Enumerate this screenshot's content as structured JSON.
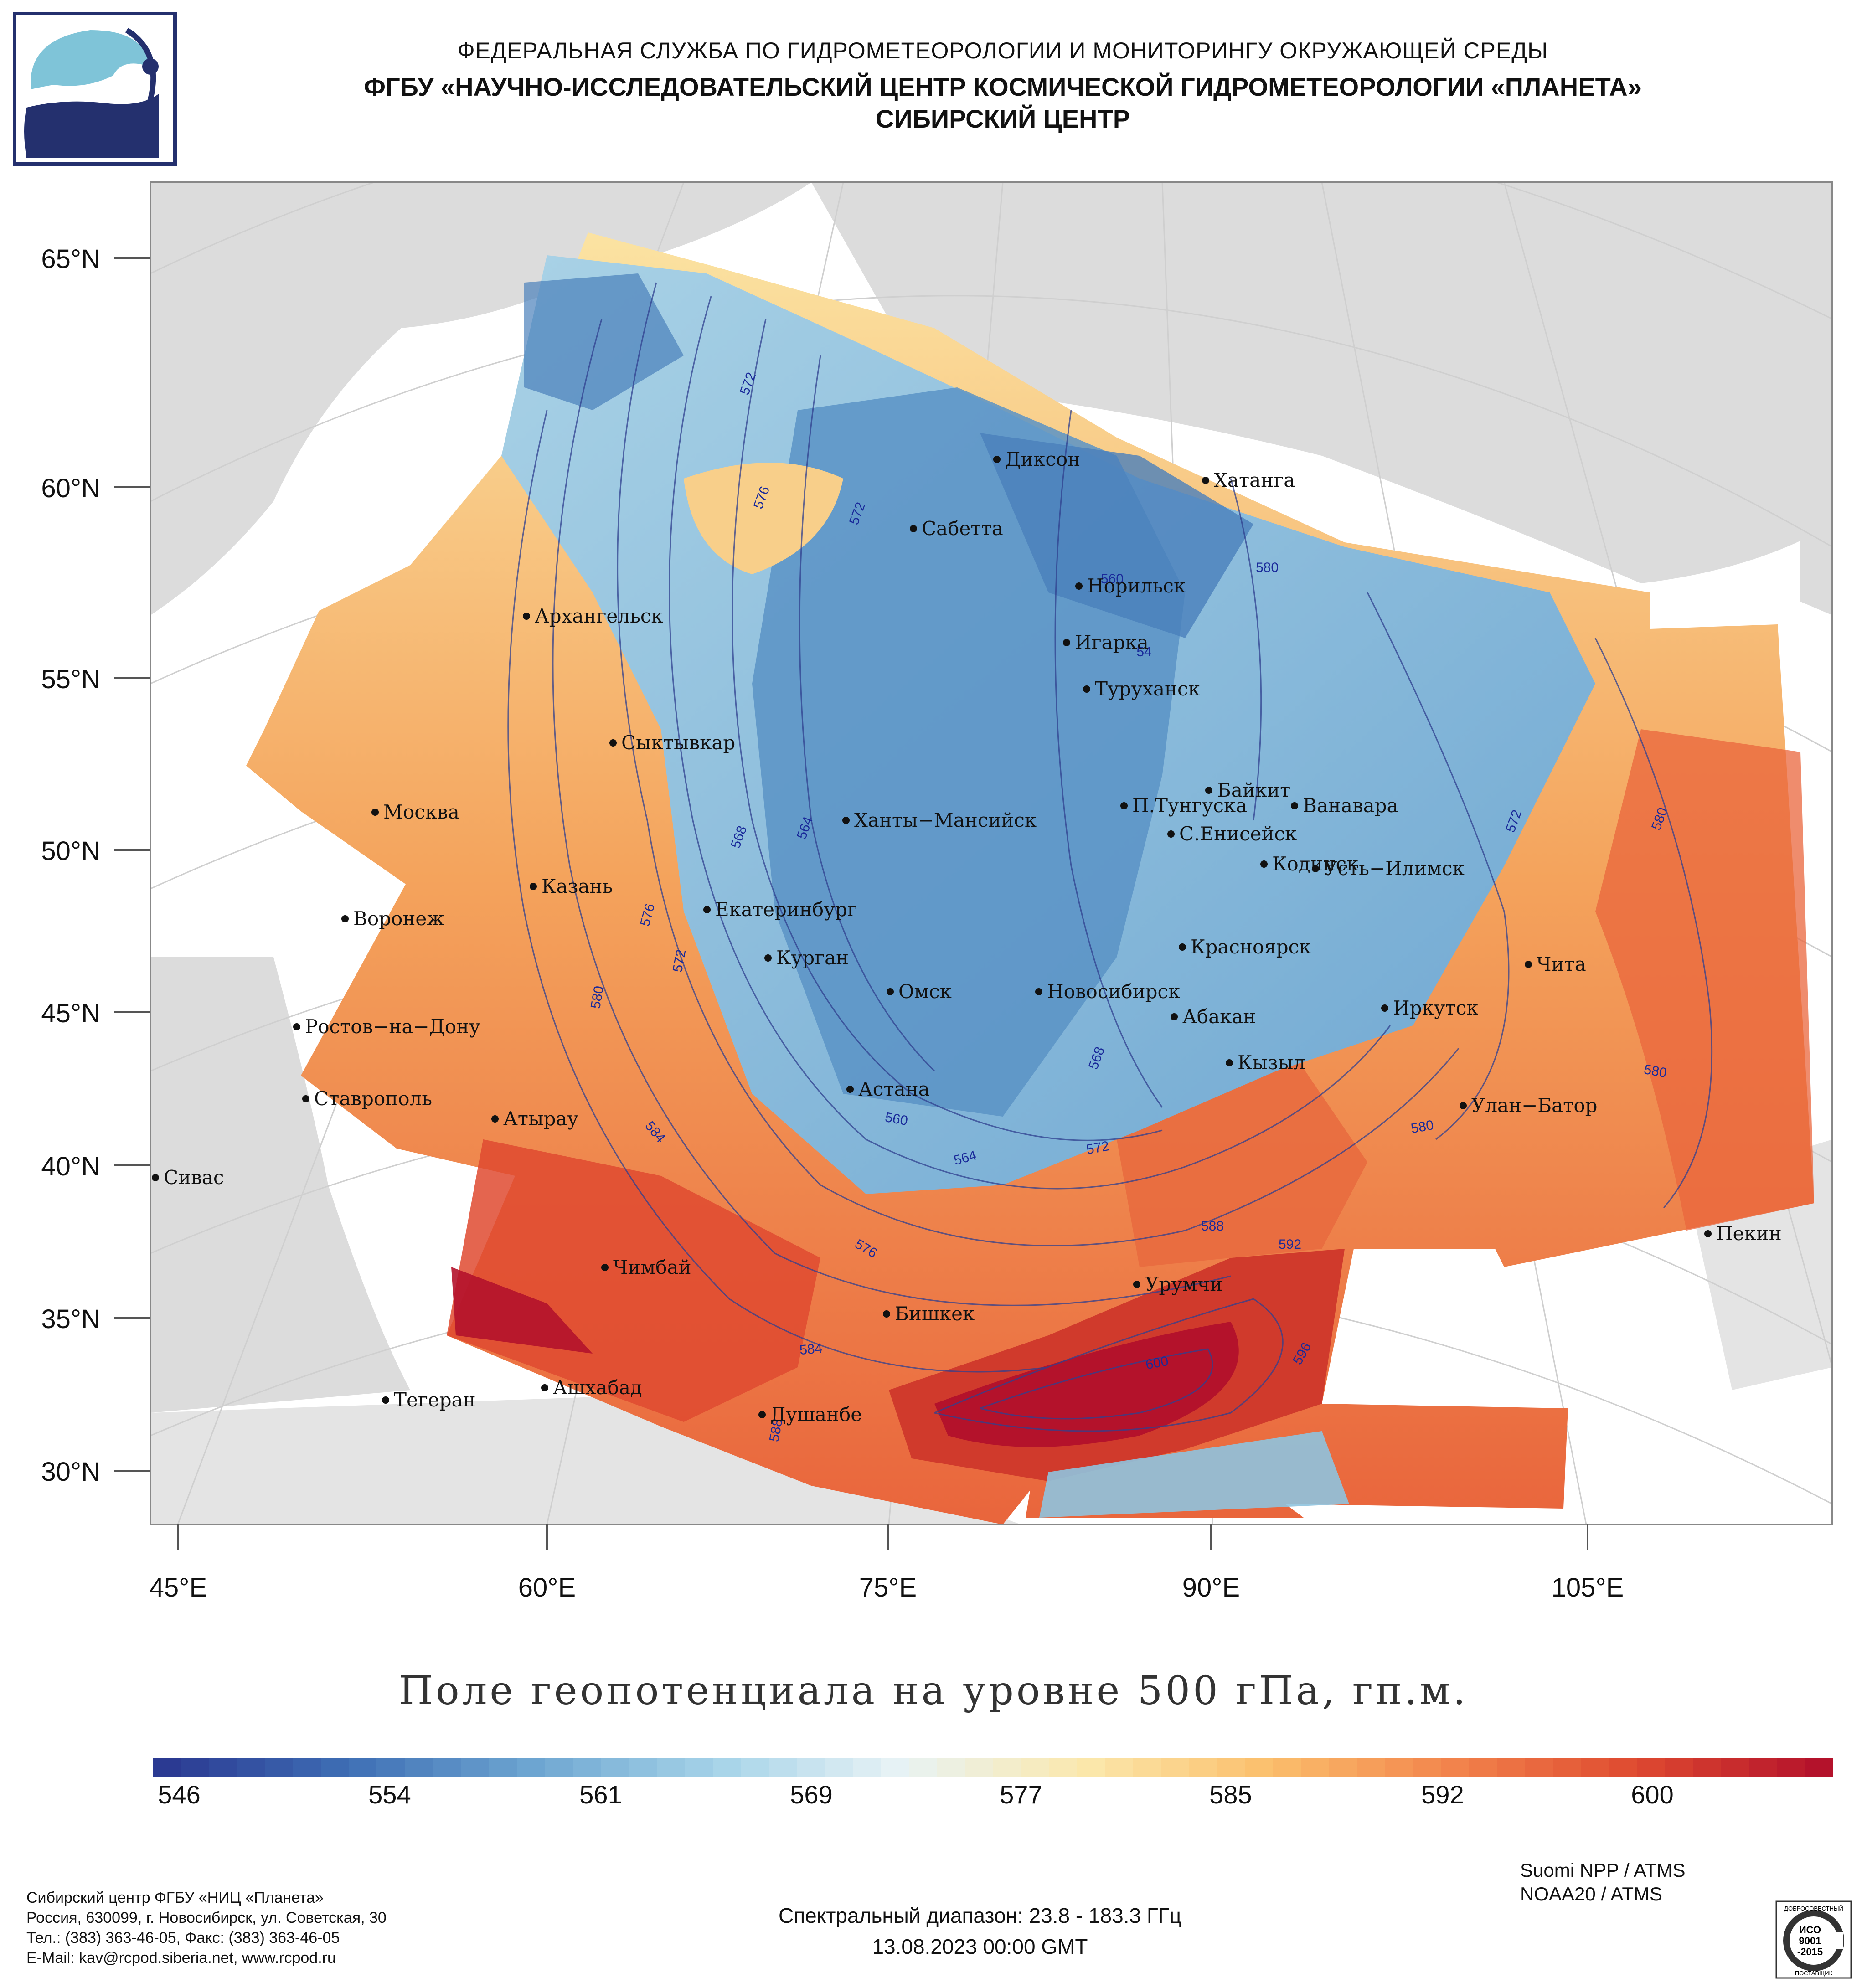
{
  "header": {
    "line1": "ФЕДЕРАЛЬНАЯ СЛУЖБА ПО ГИДРОМЕТЕОРОЛОГИИ И МОНИТОРИНГУ ОКРУЖАЮЩЕЙ СРЕДЫ",
    "line2": "ФГБУ «НАУЧНО-ИССЛЕДОВАТЕЛЬСКИЙ ЦЕНТР КОСМИЧЕСКОЙ ГИДРОМЕТЕОРОЛОГИИ «ПЛАНЕТА»",
    "line3": "СИБИРСКИЙ ЦЕНТР"
  },
  "axes": {
    "lat_labels": [
      "65°N",
      "60°N",
      "55°N",
      "50°N",
      "45°N",
      "40°N",
      "35°N",
      "30°N"
    ],
    "lon_labels": [
      "45°E",
      "60°E",
      "75°E",
      "90°E",
      "105°E"
    ]
  },
  "cities": [
    {
      "name": "Диксон"
    },
    {
      "name": "Хатанга"
    },
    {
      "name": "Сабетта"
    },
    {
      "name": "Норильск"
    },
    {
      "name": "Архангельск"
    },
    {
      "name": "Игарка"
    },
    {
      "name": "Туруханск"
    },
    {
      "name": "Сыктывкар"
    },
    {
      "name": "Байкит"
    },
    {
      "name": "Москва"
    },
    {
      "name": "Ханты−Мансийск"
    },
    {
      "name": "П.Тунгуска"
    },
    {
      "name": "Ванавара"
    },
    {
      "name": "С.Енисейск"
    },
    {
      "name": "Казань"
    },
    {
      "name": "Кодинск"
    },
    {
      "name": "Усть−Илимск"
    },
    {
      "name": "Воронеж"
    },
    {
      "name": "Екатеринбург"
    },
    {
      "name": "Красноярск"
    },
    {
      "name": "Курган"
    },
    {
      "name": "Чита"
    },
    {
      "name": "Омск"
    },
    {
      "name": "Новосибирск"
    },
    {
      "name": "Иркутск"
    },
    {
      "name": "Ростов−на−Дону"
    },
    {
      "name": "Абакан"
    },
    {
      "name": "Кызыл"
    },
    {
      "name": "Астана"
    },
    {
      "name": "Ставрополь"
    },
    {
      "name": "Улан−Батор"
    },
    {
      "name": "Атырау"
    },
    {
      "name": "Сивас"
    },
    {
      "name": "Пекин"
    },
    {
      "name": "Чимбай"
    },
    {
      "name": "Урумчи"
    },
    {
      "name": "Бишкек"
    },
    {
      "name": "Ашхабад"
    },
    {
      "name": "Тегеран"
    },
    {
      "name": "Душанбе"
    }
  ],
  "contour_labels": [
    "572",
    "576",
    "572",
    "560",
    "54",
    "568",
    "564",
    "576",
    "572",
    "580",
    "580",
    "584",
    "560",
    "564",
    "572",
    "568",
    "576",
    "584",
    "588",
    "592",
    "596",
    "600",
    "588",
    "572",
    "580",
    "580",
    "580"
  ],
  "map_title": "Поле геопотенциала на уровне 500 гПа, гп.м.",
  "colorbar": {
    "ticks": [
      "546",
      "554",
      "561",
      "569",
      "577",
      "585",
      "592",
      "600"
    ],
    "colors": [
      "#2b3a92",
      "#3f6fb5",
      "#6ea6d1",
      "#a6d3e8",
      "#e8f3f5",
      "#fbe8ac",
      "#fbbf6c",
      "#f2844c",
      "#df4a30",
      "#b4122b"
    ]
  },
  "footer": {
    "org": "Сибирский центр ФГБУ «НИЦ «Планета»",
    "address": "Россия, 630099, г. Новосибирск, ул. Советская, 30",
    "phone": "Тел.: (383) 363-46-05, Факс: (383) 363-46-05",
    "email": "E-Mail: kav@rcpod.siberia.net, www.rcpod.ru",
    "spectral": "Спектральный диапазон: 23.8 - 183.3 ГГц",
    "datetime": "13.08.2023 00:00 GMT",
    "sat1": "Suomi NPP / ATMS",
    "sat2": "NOAA20 / ATMS"
  },
  "iso_badge": {
    "top": "ДОБРОСОВЕСТНЫЙ",
    "l1": "ИСО",
    "l2": "9001",
    "l3": "-2015",
    "bottom": "ПОСТАВЩИК"
  }
}
